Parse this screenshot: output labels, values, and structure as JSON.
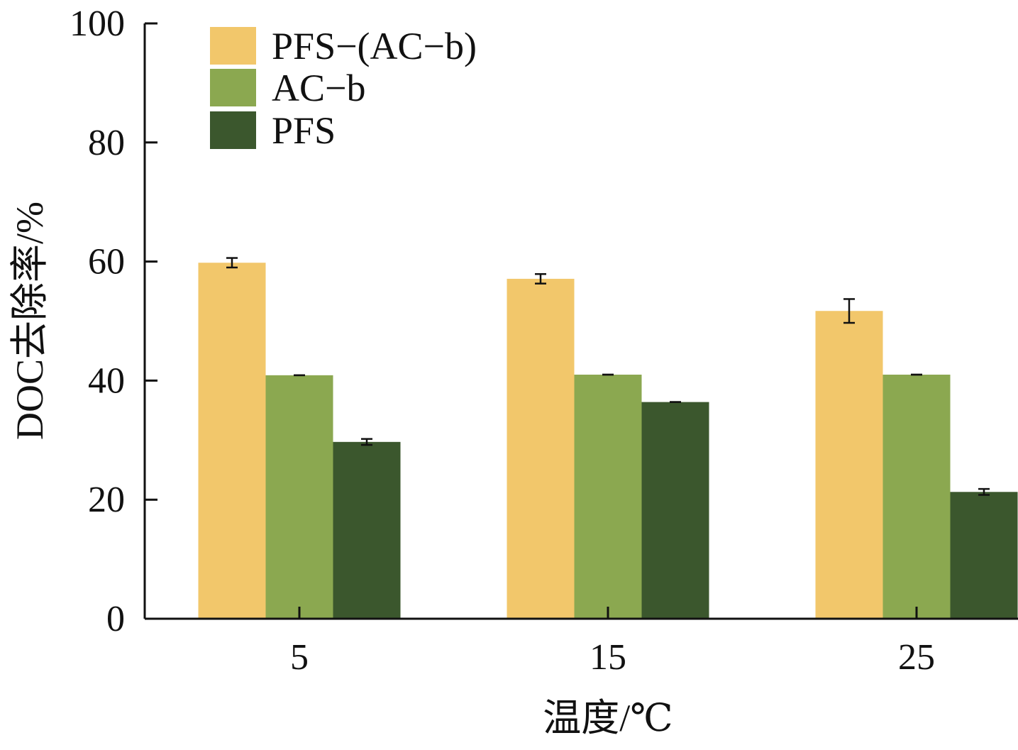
{
  "chart_data": {
    "type": "bar",
    "title": "",
    "xlabel": "温度/℃",
    "ylabel": "DOC去除率/%",
    "categories": [
      "5",
      "15",
      "25"
    ],
    "ylim": [
      0,
      100
    ],
    "yticks": [
      "0",
      "20",
      "40",
      "60",
      "80",
      "100"
    ],
    "legend_position": "top-left",
    "grid": false,
    "series": [
      {
        "name": "PFS−(AC−b)",
        "color": "#F2C76B",
        "values": [
          59.8,
          57.1,
          51.7
        ],
        "errors": [
          0.8,
          0.8,
          2.0
        ]
      },
      {
        "name": "AC−b",
        "color": "#8BA850",
        "values": [
          40.9,
          41.0,
          41.0
        ],
        "errors": [
          0,
          0,
          0
        ]
      },
      {
        "name": "PFS",
        "color": "#3B572D",
        "values": [
          29.7,
          36.4,
          21.3
        ],
        "errors": [
          0.5,
          0,
          0.5
        ]
      }
    ]
  }
}
